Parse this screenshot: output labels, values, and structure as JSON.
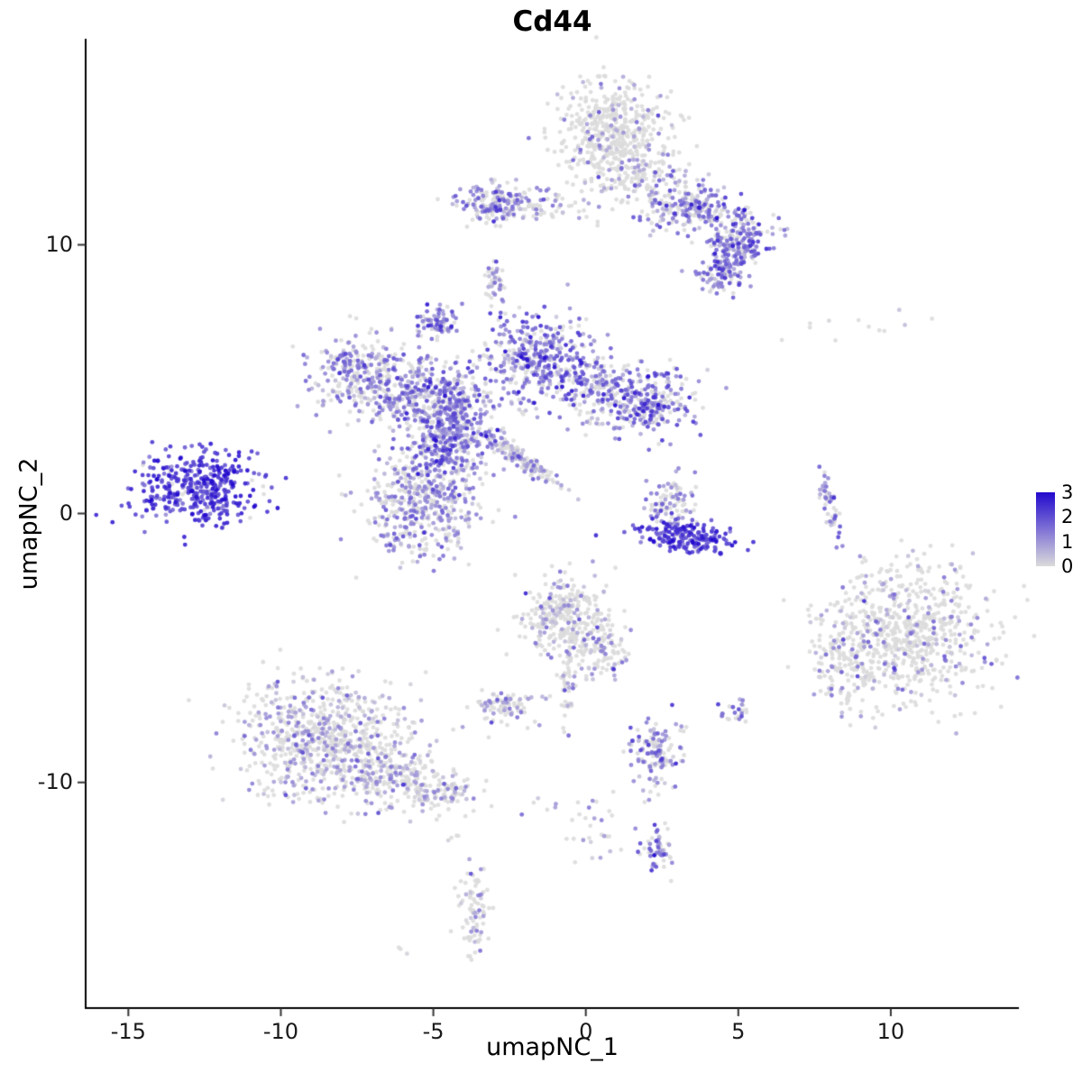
{
  "chart_data": {
    "type": "scatter",
    "title": "Cd44",
    "xlabel": "umapNC_1",
    "ylabel": "umapNC_2",
    "xlim": [
      -16.4,
      14.2
    ],
    "ylim": [
      -18.4,
      17.6
    ],
    "grid": false,
    "x_ticks": [
      {
        "value": -15,
        "label": "-15"
      },
      {
        "value": -10,
        "label": "-10"
      },
      {
        "value": -5,
        "label": "-5"
      },
      {
        "value": 0,
        "label": "0"
      },
      {
        "value": 5,
        "label": "5"
      },
      {
        "value": 10,
        "label": "10"
      }
    ],
    "y_ticks": [
      {
        "value": 10,
        "label": "10"
      },
      {
        "value": 0,
        "label": "0"
      },
      {
        "value": -10,
        "label": "-10"
      }
    ],
    "colorbar": {
      "min": 0,
      "max": 3,
      "low_color": "#DBDBDB",
      "high_color": "#2209CE",
      "ticks": [
        {
          "value": 3,
          "label": "3"
        },
        {
          "value": 2,
          "label": "2"
        },
        {
          "value": 1,
          "label": "1"
        },
        {
          "value": 0,
          "label": "0"
        }
      ]
    },
    "point": {
      "radius": 2.4,
      "alpha": 0.9
    },
    "seed": 42,
    "clusters": [
      {
        "name": "top-blob-core",
        "cx": 0.9,
        "cy": 14.4,
        "sx": 0.95,
        "sy": 0.85,
        "rot": 0,
        "n": 420,
        "zero_frac": 0.86,
        "expr_mean": 0.9,
        "expr_sd": 0.5
      },
      {
        "name": "top-blob-lower",
        "cx": 1.4,
        "cy": 12.7,
        "sx": 0.8,
        "sy": 0.6,
        "rot": 0,
        "n": 150,
        "zero_frac": 0.7,
        "expr_mean": 0.9,
        "expr_sd": 0.5
      },
      {
        "name": "top-right-ridge-a",
        "cx": 3.5,
        "cy": 11.4,
        "sx": 0.9,
        "sy": 0.5,
        "rot": -20,
        "n": 260,
        "zero_frac": 0.35,
        "expr_mean": 1.2,
        "expr_sd": 0.7
      },
      {
        "name": "top-right-ridge-b",
        "cx": 4.9,
        "cy": 9.9,
        "sx": 0.55,
        "sy": 0.75,
        "rot": -30,
        "n": 230,
        "zero_frac": 0.28,
        "expr_mean": 1.4,
        "expr_sd": 0.7
      },
      {
        "name": "top-right-tip",
        "cx": 4.4,
        "cy": 8.9,
        "sx": 0.35,
        "sy": 0.3,
        "rot": 0,
        "n": 60,
        "zero_frac": 0.4,
        "expr_mean": 1.2,
        "expr_sd": 0.6
      },
      {
        "name": "top-left-cluster",
        "cx": -2.9,
        "cy": 11.5,
        "sx": 0.65,
        "sy": 0.4,
        "rot": 0,
        "n": 170,
        "zero_frac": 0.4,
        "expr_mean": 1.1,
        "expr_sd": 0.6
      },
      {
        "name": "top-bridge",
        "cx": -1.1,
        "cy": 11.5,
        "sx": 0.9,
        "sy": 0.3,
        "rot": 0,
        "n": 60,
        "zero_frac": 0.6,
        "expr_mean": 0.8,
        "expr_sd": 0.5
      },
      {
        "name": "small-stack",
        "cx": -3.0,
        "cy": 8.7,
        "sx": 0.15,
        "sy": 0.4,
        "rot": 0,
        "n": 40,
        "zero_frac": 0.4,
        "expr_mean": 1.0,
        "expr_sd": 0.5
      },
      {
        "name": "small-knob",
        "cx": -4.8,
        "cy": 7.1,
        "sx": 0.3,
        "sy": 0.32,
        "rot": 0,
        "n": 80,
        "zero_frac": 0.2,
        "expr_mean": 1.5,
        "expr_sd": 0.6
      },
      {
        "name": "star-left-arm",
        "cx": -7.4,
        "cy": 5.3,
        "sx": 0.85,
        "sy": 0.7,
        "rot": 15,
        "n": 260,
        "zero_frac": 0.35,
        "expr_mean": 1.2,
        "expr_sd": 0.6
      },
      {
        "name": "star-midleft",
        "cx": -5.7,
        "cy": 4.5,
        "sx": 0.8,
        "sy": 0.6,
        "rot": 0,
        "n": 230,
        "zero_frac": 0.35,
        "expr_mean": 1.2,
        "expr_sd": 0.6
      },
      {
        "name": "star-node",
        "cx": -4.3,
        "cy": 3.9,
        "sx": 0.6,
        "sy": 0.8,
        "rot": 0,
        "n": 260,
        "zero_frac": 0.3,
        "expr_mean": 1.3,
        "expr_sd": 0.6
      },
      {
        "name": "star-upper-blob",
        "cx": -1.6,
        "cy": 5.8,
        "sx": 1.0,
        "sy": 0.8,
        "rot": 0,
        "n": 380,
        "zero_frac": 0.25,
        "expr_mean": 1.5,
        "expr_sd": 0.7
      },
      {
        "name": "star-right-arm",
        "cx": 0.9,
        "cy": 4.5,
        "sx": 1.2,
        "sy": 0.65,
        "rot": -10,
        "n": 330,
        "zero_frac": 0.3,
        "expr_mean": 1.4,
        "expr_sd": 0.7
      },
      {
        "name": "star-right-tip",
        "cx": 2.3,
        "cy": 4.1,
        "sx": 0.5,
        "sy": 0.5,
        "rot": 0,
        "n": 120,
        "zero_frac": 0.3,
        "expr_mean": 1.5,
        "expr_sd": 0.7
      },
      {
        "name": "star-lower-dense",
        "cx": -4.6,
        "cy": 2.5,
        "sx": 0.7,
        "sy": 0.9,
        "rot": 0,
        "n": 300,
        "zero_frac": 0.3,
        "expr_mean": 1.4,
        "expr_sd": 0.7
      },
      {
        "name": "diag-streak",
        "cx": -2.1,
        "cy": 2.0,
        "sx": 0.85,
        "sy": 0.14,
        "rot": -38,
        "n": 140,
        "zero_frac": 0.5,
        "expr_mean": 0.9,
        "expr_sd": 0.5
      },
      {
        "name": "round-lower-blob",
        "cx": -5.4,
        "cy": 0.3,
        "sx": 1.0,
        "sy": 1.0,
        "rot": 0,
        "n": 430,
        "zero_frac": 0.45,
        "expr_mean": 1.0,
        "expr_sd": 0.6
      },
      {
        "name": "left-island-high",
        "cx": -12.6,
        "cy": 0.9,
        "sx": 1.05,
        "sy": 0.72,
        "rot": 8,
        "n": 400,
        "zero_frac": 0.04,
        "expr_mean": 2.3,
        "expr_sd": 0.5
      },
      {
        "name": "crescent-upper",
        "cx": 2.7,
        "cy": 0.4,
        "sx": 0.4,
        "sy": 0.5,
        "rot": 0,
        "n": 90,
        "zero_frac": 0.45,
        "expr_mean": 1.1,
        "expr_sd": 0.6
      },
      {
        "name": "crescent-lower",
        "cx": 3.3,
        "cy": -0.9,
        "sx": 0.8,
        "sy": 0.3,
        "rot": -8,
        "n": 200,
        "zero_frac": 0.08,
        "expr_mean": 2.2,
        "expr_sd": 0.5
      },
      {
        "name": "thin-arc",
        "cx": 8.0,
        "cy": 0.3,
        "sx": 0.12,
        "sy": 0.6,
        "rot": 12,
        "n": 50,
        "zero_frac": 0.3,
        "expr_mean": 1.3,
        "expr_sd": 0.6
      },
      {
        "name": "sparse-topright",
        "cx": 8.8,
        "cy": 6.9,
        "sx": 1.4,
        "sy": 0.35,
        "rot": 0,
        "n": 12,
        "zero_frac": 0.7,
        "expr_mean": 0.6,
        "expr_sd": 0.4
      },
      {
        "name": "right-big",
        "cx": 10.6,
        "cy": -4.4,
        "sx": 1.4,
        "sy": 1.3,
        "rot": 0,
        "n": 700,
        "zero_frac": 0.8,
        "expr_mean": 0.9,
        "expr_sd": 0.6
      },
      {
        "name": "right-big-west",
        "cx": 8.6,
        "cy": -5.5,
        "sx": 0.5,
        "sy": 0.95,
        "rot": 0,
        "n": 130,
        "zero_frac": 0.75,
        "expr_mean": 0.9,
        "expr_sd": 0.6
      },
      {
        "name": "center-bottom",
        "cx": -0.6,
        "cy": -3.9,
        "sx": 0.75,
        "sy": 0.85,
        "rot": 0,
        "n": 330,
        "zero_frac": 0.75,
        "expr_mean": 0.9,
        "expr_sd": 0.7
      },
      {
        "name": "center-bottom-tail",
        "cx": 0.5,
        "cy": -5.2,
        "sx": 0.5,
        "sy": 0.5,
        "rot": 0,
        "n": 90,
        "zero_frac": 0.7,
        "expr_mean": 0.9,
        "expr_sd": 0.6
      },
      {
        "name": "center-drip",
        "cx": -0.6,
        "cy": -6.4,
        "sx": 0.14,
        "sy": 0.8,
        "rot": 0,
        "n": 40,
        "zero_frac": 0.8,
        "expr_mean": 0.8,
        "expr_sd": 0.5
      },
      {
        "name": "small-pair",
        "cx": -2.6,
        "cy": -7.2,
        "sx": 0.5,
        "sy": 0.33,
        "rot": 0,
        "n": 90,
        "zero_frac": 0.55,
        "expr_mean": 0.9,
        "expr_sd": 0.6
      },
      {
        "name": "bottomleft-big",
        "cx": -8.6,
        "cy": -8.4,
        "sx": 1.5,
        "sy": 1.1,
        "rot": -10,
        "n": 750,
        "zero_frac": 0.62,
        "expr_mean": 0.8,
        "expr_sd": 0.5
      },
      {
        "name": "bottomleft-tail",
        "cx": -6.0,
        "cy": -9.8,
        "sx": 1.0,
        "sy": 0.5,
        "rot": -15,
        "n": 200,
        "zero_frac": 0.6,
        "expr_mean": 0.8,
        "expr_sd": 0.5
      },
      {
        "name": "bottomleft-tip",
        "cx": -4.6,
        "cy": -10.4,
        "sx": 0.4,
        "sy": 0.3,
        "rot": 0,
        "n": 60,
        "zero_frac": 0.6,
        "expr_mean": 0.9,
        "expr_sd": 0.5
      },
      {
        "name": "small-south",
        "cx": 2.3,
        "cy": -8.9,
        "sx": 0.45,
        "sy": 0.65,
        "rot": 0,
        "n": 140,
        "zero_frac": 0.4,
        "expr_mean": 1.2,
        "expr_sd": 0.6
      },
      {
        "name": "dots-southeast",
        "cx": 4.9,
        "cy": -7.4,
        "sx": 0.25,
        "sy": 0.25,
        "rot": 0,
        "n": 25,
        "zero_frac": 0.4,
        "expr_mean": 1.3,
        "expr_sd": 0.6
      },
      {
        "name": "deep-south-knot",
        "cx": 2.4,
        "cy": -12.6,
        "sx": 0.3,
        "sy": 0.35,
        "rot": 0,
        "n": 60,
        "zero_frac": 0.3,
        "expr_mean": 1.4,
        "expr_sd": 0.6
      },
      {
        "name": "deep-south-sparse",
        "cx": 0.3,
        "cy": -11.8,
        "sx": 0.5,
        "sy": 0.6,
        "rot": 0,
        "n": 30,
        "zero_frac": 0.7,
        "expr_mean": 0.8,
        "expr_sd": 0.5
      },
      {
        "name": "southwest-strip",
        "cx": -3.7,
        "cy": -14.6,
        "sx": 0.25,
        "sy": 0.95,
        "rot": 0,
        "n": 85,
        "zero_frac": 0.7,
        "expr_mean": 0.9,
        "expr_sd": 0.6
      },
      {
        "name": "lone-dots-a",
        "cx": -6.1,
        "cy": -16.2,
        "sx": 0.12,
        "sy": 0.12,
        "rot": 0,
        "n": 3,
        "zero_frac": 0.7,
        "expr_mean": 0.6,
        "expr_sd": 0.4
      },
      {
        "name": "lone-dots-b",
        "cx": -4.2,
        "cy": -12.1,
        "sx": 0.2,
        "sy": 0.15,
        "rot": 0,
        "n": 4,
        "zero_frac": 0.6,
        "expr_mean": 0.7,
        "expr_sd": 0.4
      },
      {
        "name": "lone-dots-c",
        "cx": -1.4,
        "cy": -10.9,
        "sx": 0.3,
        "sy": 0.2,
        "rot": 0,
        "n": 6,
        "zero_frac": 0.6,
        "expr_mean": 0.7,
        "expr_sd": 0.4
      }
    ]
  }
}
